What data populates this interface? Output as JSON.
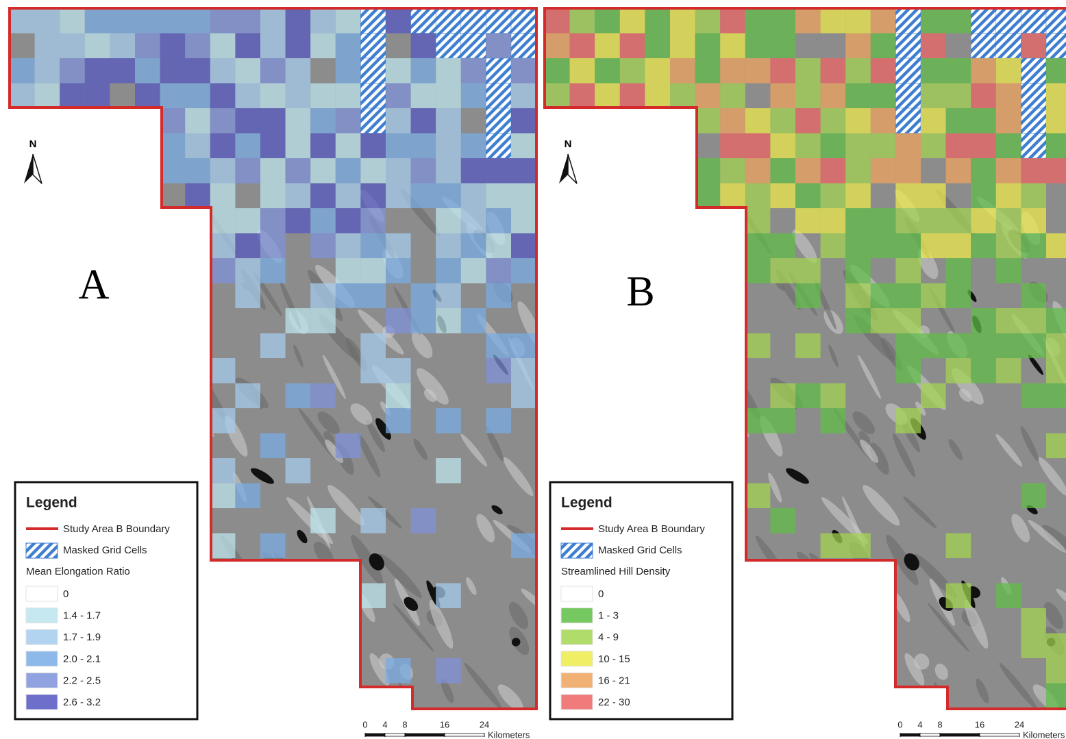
{
  "panels": [
    {
      "label": "A",
      "north": "N",
      "legend": {
        "title": "Legend",
        "boundary": "Study Area B Boundary",
        "masked": "Masked Grid Cells",
        "field": "Mean Elongation Ratio",
        "classes": [
          {
            "label": "0",
            "color": "#ffffff"
          },
          {
            "label": "1.4 - 1.7",
            "color": "#bde6ef"
          },
          {
            "label": "1.7 - 1.9",
            "color": "#a6cdee"
          },
          {
            "label": "2.0 - 2.1",
            "color": "#79ade6"
          },
          {
            "label": "2.2 - 2.5",
            "color": "#7e92dc"
          },
          {
            "label": "2.6 - 3.2",
            "color": "#5557c2"
          }
        ]
      },
      "scale": {
        "ticks": [
          0,
          4,
          8,
          16,
          24
        ],
        "unit": "Kilometers"
      }
    },
    {
      "label": "B",
      "north": "N",
      "legend": {
        "title": "Legend",
        "boundary": "Study Area B Boundary",
        "masked": "Masked Grid Cells",
        "field": "Streamlined Hill Density",
        "classes": [
          {
            "label": "0",
            "color": "#ffffff"
          },
          {
            "label": "1 - 3",
            "color": "#5fbf45"
          },
          {
            "label": "4 - 9",
            "color": "#a3d651"
          },
          {
            "label": "10 - 15",
            "color": "#eeec4a"
          },
          {
            "label": "16 - 21",
            "color": "#f0a45c"
          },
          {
            "label": "22 - 30",
            "color": "#ee6464"
          }
        ]
      },
      "scale": {
        "ticks": [
          0,
          4,
          8,
          16,
          24
        ],
        "unit": "Kilometers"
      }
    }
  ]
}
